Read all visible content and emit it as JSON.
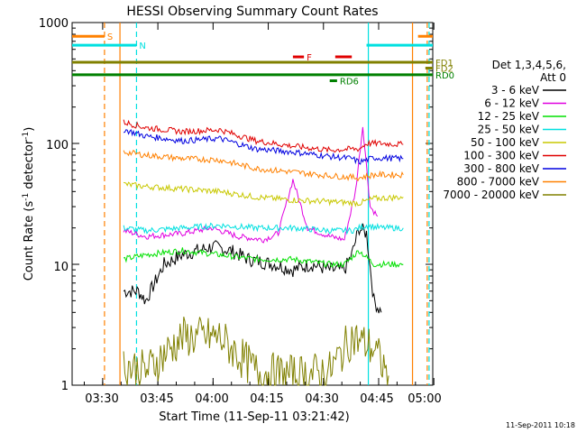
{
  "chart_data": {
    "type": "line",
    "title": "HESSI Observing Summary Count Rates",
    "xlabel": "Start Time (11-Sep-11 03:21:42)",
    "ylabel_main": "Count Rate (s",
    "ylabel_sup1": "-1",
    "ylabel_mid": " detector",
    "ylabel_sup2": "-1",
    "ylabel_end": ")",
    "y_scale": "log",
    "ylim": [
      1,
      1000
    ],
    "x_range_minutes": [
      0,
      98
    ],
    "y_ticks": [
      "1000",
      "100",
      "10",
      "1"
    ],
    "x_ticks": [
      "03:30",
      "03:45",
      "04:00",
      "04:15",
      "04:30",
      "04:45",
      "05:00"
    ],
    "x_tick_minutes": [
      8.3,
      23.3,
      38.3,
      53.3,
      68.3,
      83.3,
      98.3
    ],
    "legend_placement": "right",
    "legend_header": [
      "Det 1,3,4,5,6,",
      "Att 0"
    ],
    "series": [
      {
        "name": "3 - 6 keV",
        "color": "#000000",
        "base": 9.5,
        "x": [
          14,
          18,
          20,
          25,
          30,
          38,
          43,
          48,
          55,
          60,
          65,
          70,
          74,
          76,
          78,
          80,
          82,
          84
        ],
        "y": [
          6,
          6,
          5,
          10,
          12,
          14,
          13,
          11,
          10,
          9,
          10,
          9,
          9,
          12,
          20,
          18,
          5,
          4
        ]
      },
      {
        "name": "6 - 12 keV",
        "color": "#e000e0",
        "base": 18,
        "x": [
          14,
          20,
          30,
          38,
          45,
          52,
          56,
          60,
          64,
          70,
          74,
          77,
          79,
          81,
          83
        ],
        "y": [
          19,
          17,
          18,
          20,
          17,
          16,
          18,
          50,
          20,
          17,
          16,
          40,
          140,
          30,
          25
        ]
      },
      {
        "name": "12 - 25 keV",
        "color": "#00e000",
        "base": 12,
        "x": [
          14,
          20,
          30,
          40,
          50,
          60,
          70,
          74,
          78,
          82,
          86,
          90
        ],
        "y": [
          11,
          12,
          13,
          12,
          11,
          11,
          10,
          10,
          13,
          10,
          10,
          10
        ]
      },
      {
        "name": "25 - 50 keV",
        "color": "#00e0e0",
        "base": 20,
        "x": [
          14,
          20,
          30,
          40,
          50,
          60,
          70,
          76,
          80,
          84,
          90
        ],
        "y": [
          20,
          19,
          20,
          21,
          20,
          20,
          19,
          19,
          21,
          20,
          20
        ]
      },
      {
        "name": "50 - 100 keV",
        "color": "#c8c800",
        "base": 40,
        "x": [
          14,
          20,
          30,
          40,
          50,
          60,
          70,
          78,
          82,
          90
        ],
        "y": [
          46,
          44,
          42,
          40,
          36,
          34,
          33,
          32,
          35,
          36
        ]
      },
      {
        "name": "100 - 300 keV",
        "color": "#e00000",
        "base": 120,
        "x": [
          14,
          20,
          30,
          40,
          50,
          60,
          70,
          76,
          78,
          80,
          84,
          90
        ],
        "y": [
          150,
          135,
          125,
          130,
          105,
          95,
          88,
          90,
          90,
          100,
          100,
          98
        ]
      },
      {
        "name": "300 - 800 keV",
        "color": "#0000e0",
        "base": 100,
        "x": [
          14,
          20,
          30,
          40,
          50,
          60,
          70,
          76,
          78,
          82,
          90
        ],
        "y": [
          130,
          115,
          105,
          110,
          90,
          85,
          78,
          75,
          70,
          76,
          75
        ]
      },
      {
        "name": "800 - 7000 keV",
        "color": "#ff8000",
        "base": 70,
        "x": [
          14,
          20,
          30,
          40,
          50,
          60,
          70,
          78,
          82,
          90
        ],
        "y": [
          85,
          80,
          75,
          73,
          62,
          58,
          54,
          52,
          55,
          55
        ]
      },
      {
        "name": "7000 - 20000 keV",
        "color": "#808000",
        "base": 1.5,
        "x": [
          14,
          20,
          30,
          40,
          50,
          60,
          70,
          76,
          82,
          86
        ],
        "y": [
          1.5,
          1.3,
          2.5,
          2.5,
          1.3,
          1.2,
          1.3,
          2.5,
          2,
          1.2
        ]
      }
    ],
    "annotations": [
      {
        "label": "S",
        "color": "#ff8000",
        "y": 770,
        "x0": 0,
        "x1": 8.8
      },
      {
        "label": "N",
        "color": "#00e0e0",
        "y": 650,
        "x0": 0,
        "x1": 17.5
      },
      {
        "label": "F",
        "color": "#e00000",
        "y": 520,
        "x0": 60,
        "x1": 63
      },
      {
        "label": "",
        "color": "#e00000",
        "y": 520,
        "x0": 71.5,
        "x1": 76
      },
      {
        "label": "FD1",
        "color": "#808000",
        "y": 470,
        "x0": 0,
        "x1": 98
      },
      {
        "label": "FD2",
        "color": "#808000",
        "y": 420,
        "x0": 96,
        "x1": 98
      },
      {
        "label": "RD0",
        "color": "#008000",
        "y": 370,
        "x0": 0,
        "x1": 98
      },
      {
        "label": "RD6",
        "color": "#008000",
        "y": 330,
        "x0": 70,
        "x1": 72
      },
      {
        "label": "",
        "color": "#00e0e0",
        "y": 650,
        "x0": 80,
        "x1": 98
      },
      {
        "label": "",
        "color": "#ff8000",
        "y": 770,
        "x0": 94,
        "x1": 98
      }
    ],
    "vertical_markers": [
      {
        "x": 8.8,
        "color": "#ff8000",
        "dashed": true
      },
      {
        "x": 17.5,
        "color": "#00e0e0",
        "dashed": true
      },
      {
        "x": 13.0,
        "color": "#ff8000",
        "dashed": false
      },
      {
        "x": 80.5,
        "color": "#00e0e0",
        "dashed": false
      },
      {
        "x": 92.5,
        "color": "#ff8000",
        "dashed": false
      },
      {
        "x": 96.5,
        "color": "#ff8000",
        "dashed": true
      },
      {
        "x": 97.0,
        "color": "#00e0e0",
        "dashed": true
      }
    ]
  },
  "footer_timestamp": "11-Sep-2011 10:18"
}
